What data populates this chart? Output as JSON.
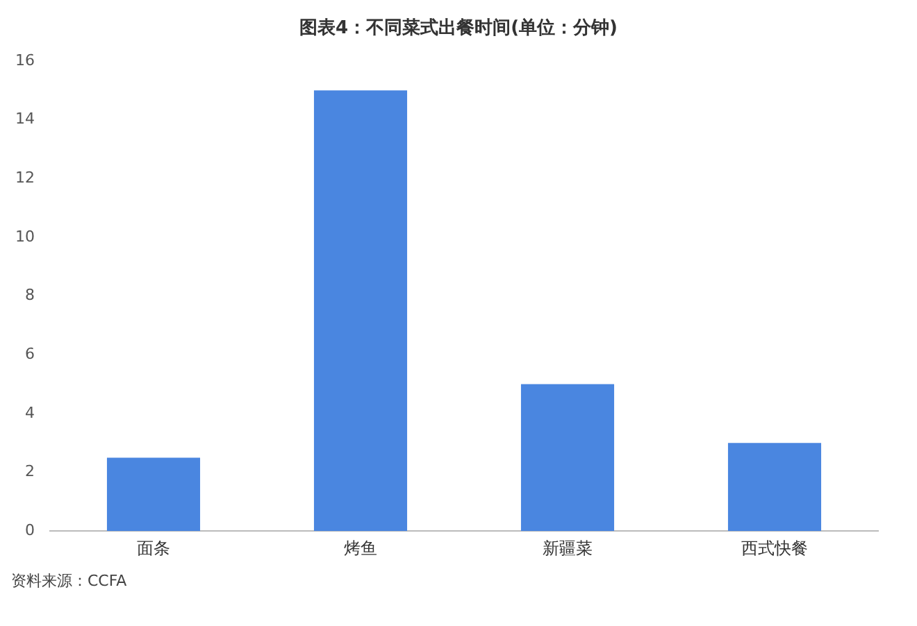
{
  "chart_data": {
    "type": "bar",
    "title": "图表4：不同菜式出餐时间(单位：分钟)",
    "categories": [
      "面条",
      "烤鱼",
      "新疆菜",
      "西式快餐"
    ],
    "values": [
      2.5,
      15,
      5,
      3
    ],
    "color": "#4a86e0",
    "ylim": [
      0,
      16
    ],
    "yticks": [
      0,
      2,
      4,
      6,
      8,
      10,
      12,
      14,
      16
    ],
    "grid": false,
    "legend": false,
    "annotations": [
      "资料来源：CCFA"
    ]
  }
}
